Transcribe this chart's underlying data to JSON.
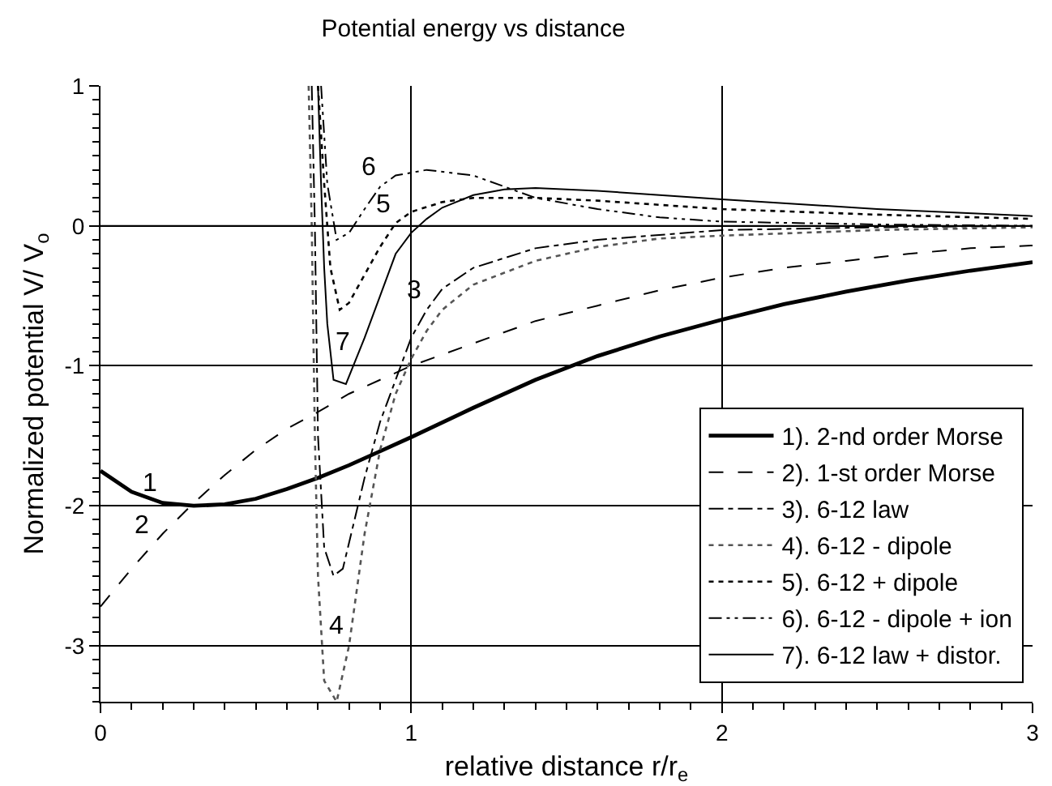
{
  "chart_data": {
    "type": "line",
    "title": "Potential energy vs distance",
    "xlabel": "relative distance r/r$_{e}$",
    "ylabel": "Normalized potential V/ V$_{o}$",
    "xlim": [
      0,
      3
    ],
    "xticks": [
      0,
      1,
      2,
      3
    ],
    "ylim": [
      -3.4,
      1
    ],
    "yticks": [
      -3,
      -2,
      -1,
      0,
      1
    ],
    "grid": true,
    "legend": "bottom right",
    "marker": "none",
    "series": [
      {
        "name": "1). 2-nd order Morse",
        "color": "#000000",
        "line_style": "solid",
        "x": [
          0,
          0.1,
          0.2,
          0.3,
          0.4,
          0.5,
          0.6,
          0.7,
          0.8,
          0.9,
          1.0,
          1.2,
          1.4,
          1.6,
          1.8,
          2.0,
          2.2,
          2.4,
          2.6,
          2.8,
          3.0
        ],
        "values": [
          -1.75,
          -1.9,
          -1.98,
          -2.0,
          -1.99,
          -1.95,
          -1.88,
          -1.8,
          -1.71,
          -1.61,
          -1.51,
          -1.3,
          -1.1,
          -0.93,
          -0.79,
          -0.67,
          -0.56,
          -0.47,
          -0.39,
          -0.32,
          -0.26
        ]
      },
      {
        "name": "2). 1-st order Morse",
        "color": "#000000",
        "line_style": "dashed",
        "x": [
          0,
          0.1,
          0.2,
          0.3,
          0.4,
          0.5,
          0.6,
          0.7,
          0.8,
          0.9,
          1.0,
          1.2,
          1.4,
          1.6,
          1.8,
          2.0,
          2.2,
          2.4,
          2.6,
          2.8,
          3.0
        ],
        "values": [
          -2.72,
          -2.45,
          -2.2,
          -1.98,
          -1.78,
          -1.6,
          -1.45,
          -1.33,
          -1.2,
          -1.1,
          -1.0,
          -0.84,
          -0.68,
          -0.57,
          -0.46,
          -0.37,
          -0.3,
          -0.25,
          -0.2,
          -0.16,
          -0.14
        ]
      },
      {
        "name": "3). 6-12 law",
        "color": "#000000",
        "line_style": "dashdot",
        "x": [
          0.68,
          0.69,
          0.7,
          0.72,
          0.75,
          0.78,
          0.85,
          0.9,
          0.95,
          1.0,
          1.05,
          1.1,
          1.2,
          1.4,
          1.6,
          2.0,
          2.5,
          3.0
        ],
        "values": [
          1.0,
          0,
          -1.5,
          -2.3,
          -2.5,
          -2.45,
          -1.8,
          -1.4,
          -1.1,
          -0.8,
          -0.6,
          -0.45,
          -0.3,
          -0.16,
          -0.1,
          -0.03,
          -0.01,
          0
        ]
      },
      {
        "name": "4). 6-12 - dipole",
        "color": "#555555",
        "line_style": "dotted",
        "x": [
          0.67,
          0.68,
          0.69,
          0.7,
          0.72,
          0.76,
          0.8,
          0.85,
          0.9,
          0.95,
          1.0,
          1.05,
          1.1,
          1.2,
          1.4,
          1.6,
          1.8,
          2.0,
          2.5,
          3.0
        ],
        "values": [
          1.0,
          0,
          -1.5,
          -2.5,
          -3.25,
          -3.4,
          -3.0,
          -2.2,
          -1.6,
          -1.2,
          -0.95,
          -0.75,
          -0.6,
          -0.42,
          -0.25,
          -0.15,
          -0.09,
          -0.07,
          -0.03,
          -0.01
        ]
      },
      {
        "name": "5). 6-12 + dipole",
        "color": "#000000",
        "line_style": "dotted",
        "x": [
          0.7,
          0.72,
          0.74,
          0.77,
          0.8,
          0.85,
          0.9,
          0.95,
          1.0,
          1.1,
          1.2,
          1.4,
          1.6,
          1.8,
          2.0,
          2.5,
          3.0
        ],
        "values": [
          1.0,
          0.3,
          -0.3,
          -0.6,
          -0.55,
          -0.35,
          -0.15,
          0.02,
          0.1,
          0.17,
          0.2,
          0.2,
          0.18,
          0.15,
          0.12,
          0.08,
          0.05
        ]
      },
      {
        "name": "6). 6-12 - dipole + ion",
        "color": "#000000",
        "line_style": "dashdotdot",
        "x": [
          0.71,
          0.73,
          0.76,
          0.8,
          0.85,
          0.9,
          0.95,
          1.05,
          1.2,
          1.3,
          1.4,
          1.6,
          1.8,
          2.0,
          2.5,
          3.0
        ],
        "values": [
          1.0,
          0.3,
          -0.1,
          -0.05,
          0.12,
          0.28,
          0.36,
          0.4,
          0.36,
          0.28,
          0.2,
          0.12,
          0.06,
          0.03,
          0.01,
          0
        ]
      },
      {
        "name": "7). 6-12 law + distor.",
        "color": "#000000",
        "line_style": "solid",
        "x": [
          0.7,
          0.71,
          0.72,
          0.73,
          0.75,
          0.79,
          0.85,
          0.9,
          0.95,
          1.0,
          1.05,
          1.1,
          1.2,
          1.3,
          1.4,
          1.6,
          1.8,
          2.0,
          2.5,
          3.0
        ],
        "values": [
          1.0,
          0.3,
          -0.3,
          -0.7,
          -1.1,
          -1.13,
          -0.8,
          -0.5,
          -0.2,
          -0.05,
          0.05,
          0.13,
          0.22,
          0.26,
          0.27,
          0.25,
          0.22,
          0.19,
          0.12,
          0.07
        ]
      }
    ],
    "annotations": [
      {
        "text": "1",
        "x": 0.2,
        "y": -1.98
      },
      {
        "text": "2",
        "x": 0.17,
        "y": -2.28
      },
      {
        "text": "3",
        "x": 1.05,
        "y": -0.6
      },
      {
        "text": "4",
        "x": 0.8,
        "y": -3.0
      },
      {
        "text": "5",
        "x": 0.95,
        "y": 0.02
      },
      {
        "text": "6",
        "x": 0.9,
        "y": 0.28
      },
      {
        "text": "7",
        "x": 0.82,
        "y": -0.97
      }
    ]
  }
}
